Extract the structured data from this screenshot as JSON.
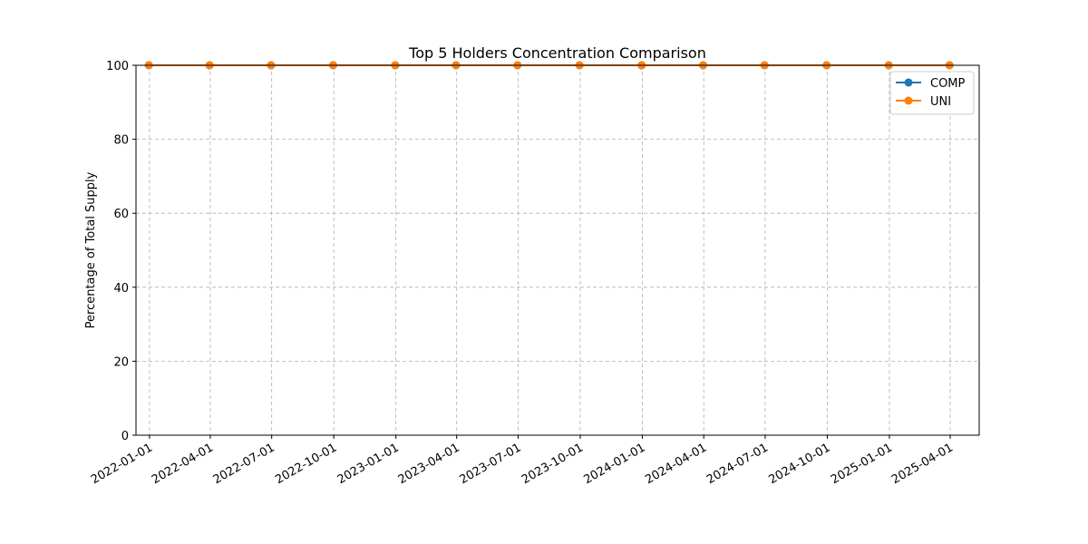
{
  "chart_data": {
    "type": "line",
    "title": "Top 5 Holders Concentration Comparison",
    "xlabel": "",
    "ylabel": "Percentage of Total Supply",
    "ylim": [
      0,
      100
    ],
    "yticks": [
      "0",
      "20",
      "40",
      "60",
      "80",
      "100"
    ],
    "xlim": [
      "2021-12-12",
      "2025-05-14"
    ],
    "xticks": [
      "2022-01-01",
      "2022-04-01",
      "2022-07-01",
      "2022-10-01",
      "2023-01-01",
      "2023-04-01",
      "2023-07-01",
      "2023-10-01",
      "2024-01-01",
      "2024-04-01",
      "2024-07-01",
      "2024-10-01",
      "2025-01-01",
      "2025-04-01"
    ],
    "x": [
      "2021-12-31",
      "2022-03-31",
      "2022-06-30",
      "2022-09-30",
      "2022-12-31",
      "2023-03-31",
      "2023-06-30",
      "2023-09-30",
      "2023-12-31",
      "2024-03-31",
      "2024-06-30",
      "2024-09-30",
      "2024-12-31",
      "2025-03-31"
    ],
    "series": [
      {
        "name": "COMP",
        "color": "#1f77b4",
        "values": [
          100,
          100,
          100,
          100,
          100,
          100,
          100,
          100,
          100,
          100,
          100,
          100,
          100,
          100
        ]
      },
      {
        "name": "UNI",
        "color": "#ff7f0e",
        "values": [
          100,
          100,
          100,
          100,
          100,
          100,
          100,
          100,
          100,
          100,
          100,
          100,
          100,
          100
        ]
      }
    ],
    "grid": true,
    "legend": "top-right"
  }
}
